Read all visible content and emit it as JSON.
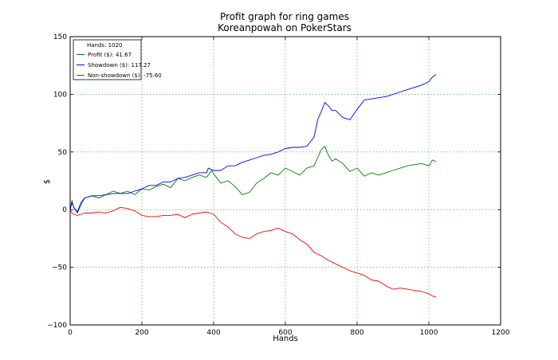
{
  "chart_data": {
    "type": "line",
    "title": "Profit graph for ring games",
    "subtitle": "Koreanpowah on PokerStars",
    "xlabel": "Hands",
    "ylabel": "$",
    "xlim": [
      0,
      1200
    ],
    "ylim": [
      -100,
      150
    ],
    "x_ticks": [
      0,
      200,
      400,
      600,
      800,
      1000,
      1200
    ],
    "y_ticks": [
      -100,
      -50,
      0,
      50,
      100,
      150
    ],
    "grid": true,
    "legend_position": "top-left",
    "legend_header": "Hands: 1020",
    "series": [
      {
        "name": "Profit ($): 41.67",
        "color": "#008000",
        "x": [
          0,
          5,
          10,
          20,
          30,
          40,
          60,
          80,
          100,
          120,
          140,
          160,
          180,
          200,
          220,
          240,
          260,
          280,
          300,
          320,
          340,
          360,
          380,
          395,
          400,
          420,
          440,
          460,
          480,
          500,
          520,
          540,
          560,
          580,
          600,
          620,
          640,
          660,
          680,
          690,
          700,
          710,
          720,
          730,
          740,
          760,
          780,
          800,
          820,
          840,
          860,
          880,
          900,
          920,
          940,
          960,
          980,
          1000,
          1010,
          1020
        ],
        "y": [
          0,
          8,
          2,
          -3,
          4,
          10,
          12,
          10,
          13,
          16,
          14,
          16,
          13,
          18,
          17,
          20,
          22,
          19,
          27,
          25,
          28,
          30,
          28,
          34,
          31,
          23,
          25,
          20,
          13,
          15,
          23,
          27,
          32,
          30,
          36,
          33,
          30,
          36,
          38,
          45,
          52,
          55,
          47,
          42,
          44,
          40,
          33,
          36,
          29,
          32,
          30,
          32,
          34,
          36,
          38,
          39,
          40,
          38,
          43,
          41.67
        ]
      },
      {
        "name": "Showdown ($): 117.27",
        "color": "#0000ff",
        "x": [
          0,
          5,
          10,
          20,
          30,
          40,
          60,
          80,
          100,
          120,
          140,
          160,
          180,
          200,
          220,
          240,
          260,
          280,
          300,
          320,
          340,
          360,
          380,
          385,
          400,
          420,
          440,
          460,
          480,
          500,
          520,
          540,
          560,
          580,
          600,
          620,
          640,
          660,
          680,
          690,
          700,
          710,
          720,
          730,
          740,
          760,
          780,
          800,
          820,
          840,
          860,
          880,
          900,
          920,
          940,
          960,
          980,
          1000,
          1010,
          1020
        ],
        "y": [
          0,
          6,
          2,
          -2,
          6,
          10,
          12,
          12,
          13,
          14,
          14,
          14,
          16,
          18,
          21,
          21,
          24,
          24,
          27,
          28,
          30,
          32,
          32,
          36,
          34,
          34,
          38,
          38,
          41,
          43,
          45,
          47,
          48,
          50,
          53,
          54,
          54,
          55,
          63,
          78,
          85,
          93,
          90,
          86,
          86,
          80,
          78,
          87,
          95,
          96,
          97,
          98,
          100,
          102,
          104,
          106,
          108,
          111,
          115,
          117.27
        ]
      },
      {
        "name": "Non-showdown ($): -75.60",
        "color": "#ff0000",
        "x": [
          0,
          5,
          10,
          20,
          30,
          40,
          60,
          80,
          100,
          120,
          140,
          160,
          180,
          200,
          220,
          240,
          260,
          280,
          300,
          320,
          340,
          360,
          380,
          400,
          420,
          440,
          460,
          480,
          500,
          520,
          540,
          560,
          580,
          600,
          620,
          640,
          660,
          680,
          700,
          720,
          740,
          760,
          780,
          800,
          820,
          840,
          860,
          880,
          900,
          920,
          940,
          960,
          980,
          1000,
          1010,
          1020
        ],
        "y": [
          0,
          -3,
          -4,
          -5,
          -4,
          -3,
          -3,
          -2,
          -3,
          -1,
          2,
          1,
          -1,
          -5,
          -6,
          -6,
          -5,
          -5,
          -4,
          -7,
          -4,
          -3,
          -2,
          -4,
          -11,
          -15,
          -21,
          -24,
          -25,
          -21,
          -19,
          -18,
          -16,
          -19,
          -21,
          -26,
          -30,
          -37,
          -40,
          -44,
          -47,
          -50,
          -53,
          -55,
          -57,
          -61,
          -62,
          -66,
          -69,
          -68,
          -69,
          -70,
          -71,
          -73,
          -75,
          -75.6
        ]
      }
    ]
  }
}
